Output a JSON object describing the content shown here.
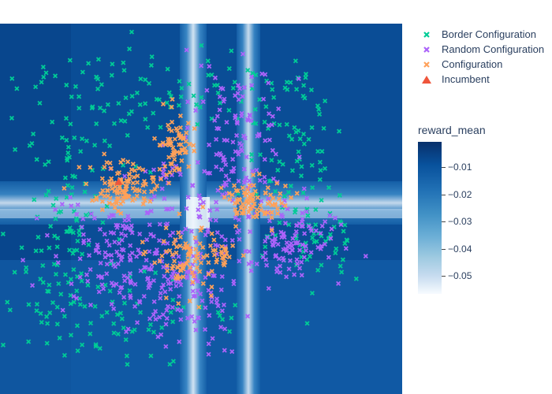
{
  "chart_data": {
    "type": "scatter",
    "background": "heatmap",
    "colorbar": {
      "title": "reward_mean",
      "ticks": [
        -0.01,
        -0.02,
        -0.03,
        -0.04,
        -0.05
      ],
      "tick_labels": [
        "−0.01",
        "−0.02",
        "−0.03",
        "−0.04",
        "−0.05"
      ],
      "range": [
        -0.056,
        -0.0045
      ],
      "colorscale": "Blues"
    },
    "series": [
      {
        "name": "Border Configuration",
        "marker": "x",
        "color": "#00cc96",
        "clusters": [
          [
            0.38,
            0.18,
            0.17,
            0.06,
            90
          ],
          [
            0.73,
            0.32,
            0.06,
            0.13,
            75
          ],
          [
            0.18,
            0.44,
            0.07,
            0.14,
            80
          ],
          [
            0.27,
            0.78,
            0.17,
            0.06,
            85
          ],
          [
            0.79,
            0.58,
            0.06,
            0.07,
            55
          ],
          [
            0.14,
            0.64,
            0.05,
            0.08,
            40
          ]
        ]
      },
      {
        "name": "Random Configuration",
        "marker": "x",
        "color": "#ab63fa",
        "clusters": [
          [
            0.6,
            0.3,
            0.06,
            0.09,
            110
          ],
          [
            0.72,
            0.58,
            0.06,
            0.06,
            110
          ],
          [
            0.29,
            0.62,
            0.08,
            0.08,
            150
          ],
          [
            0.46,
            0.7,
            0.07,
            0.09,
            140
          ],
          [
            0.53,
            0.48,
            0.06,
            0.05,
            40
          ],
          [
            0.4,
            0.4,
            0.03,
            0.03,
            15
          ]
        ]
      },
      {
        "name": "Configuration",
        "marker": "x",
        "color": "#ffa15a",
        "clusters": [
          [
            0.44,
            0.33,
            0.025,
            0.04,
            65
          ],
          [
            0.31,
            0.44,
            0.04,
            0.03,
            115
          ],
          [
            0.63,
            0.48,
            0.04,
            0.03,
            85
          ],
          [
            0.46,
            0.62,
            0.04,
            0.05,
            85
          ],
          [
            0.56,
            0.63,
            0.02,
            0.02,
            20
          ]
        ]
      },
      {
        "name": "Incumbent",
        "marker": "triangle-up",
        "color": "#ef553b",
        "points": [
          [
            0.295,
            0.427
          ]
        ]
      }
    ],
    "legend_position": "right"
  }
}
